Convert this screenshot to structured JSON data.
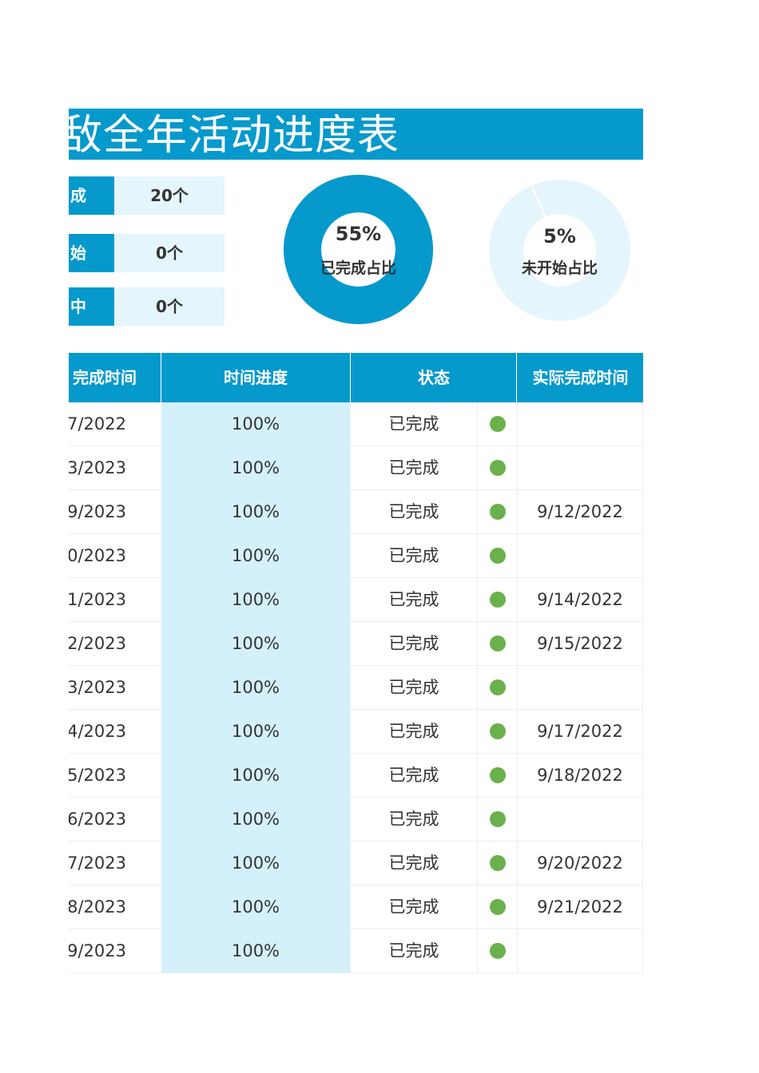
{
  "title": "敌全年活动进度表",
  "stats": [
    {
      "label": "成",
      "value": "20个"
    },
    {
      "label": "始",
      "value": "0个"
    },
    {
      "label": "中",
      "value": "0个"
    }
  ],
  "donuts": [
    {
      "percent_text": "55%",
      "caption": "已完成占比",
      "value": 0.55,
      "color": "#0599cc",
      "track": "#0599cc"
    },
    {
      "percent_text": "5%",
      "caption": "未开始占比",
      "value": 0.05,
      "color": "#e4f5fc",
      "track": "#e4f5fc"
    }
  ],
  "table": {
    "headers": {
      "planned": "完成时间",
      "progress": "时间进度",
      "status": "状态",
      "actual": "实际完成时间"
    },
    "rows": [
      {
        "planned": "7/2022",
        "progress": "100%",
        "status": "已完成",
        "actual": ""
      },
      {
        "planned": "3/2023",
        "progress": "100%",
        "status": "已完成",
        "actual": ""
      },
      {
        "planned": "9/2023",
        "progress": "100%",
        "status": "已完成",
        "actual": "9/12/2022"
      },
      {
        "planned": "0/2023",
        "progress": "100%",
        "status": "已完成",
        "actual": ""
      },
      {
        "planned": "1/2023",
        "progress": "100%",
        "status": "已完成",
        "actual": "9/14/2022"
      },
      {
        "planned": "2/2023",
        "progress": "100%",
        "status": "已完成",
        "actual": "9/15/2022"
      },
      {
        "planned": "3/2023",
        "progress": "100%",
        "status": "已完成",
        "actual": ""
      },
      {
        "planned": "4/2023",
        "progress": "100%",
        "status": "已完成",
        "actual": "9/17/2022"
      },
      {
        "planned": "5/2023",
        "progress": "100%",
        "status": "已完成",
        "actual": "9/18/2022"
      },
      {
        "planned": "6/2023",
        "progress": "100%",
        "status": "已完成",
        "actual": ""
      },
      {
        "planned": "7/2023",
        "progress": "100%",
        "status": "已完成",
        "actual": "9/20/2022"
      },
      {
        "planned": "8/2023",
        "progress": "100%",
        "status": "已完成",
        "actual": "9/21/2022"
      },
      {
        "planned": "9/2023",
        "progress": "100%",
        "status": "已完成",
        "actual": ""
      }
    ]
  },
  "colors": {
    "accent": "#0599cc",
    "light": "#e4f5fc",
    "progress_bg": "#d4f1fb",
    "status_dot": "#6ab04c"
  }
}
